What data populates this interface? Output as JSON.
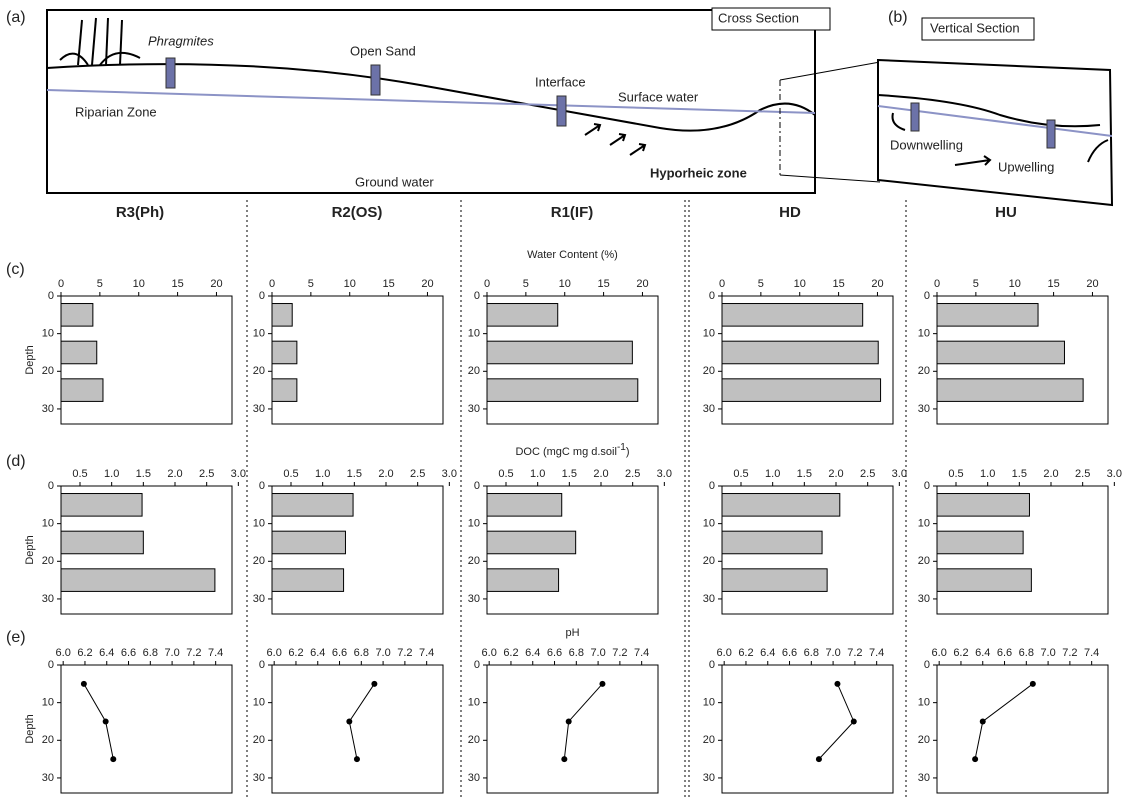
{
  "diagram": {
    "panel_a": "(a)",
    "panel_b": "(b)",
    "cross_section": "Cross Section",
    "vertical_section": "Vertical Section",
    "phragmites": "Phragmites",
    "open_sand": "Open Sand",
    "interface": "Interface",
    "surface_water": "Surface water",
    "riparian_zone": "Riparian Zone",
    "ground_water": "Ground water",
    "hyporheic_zone": "Hyporheic zone",
    "downwelling": "Downwelling",
    "upwelling": "Upwelling"
  },
  "panel_labels": [
    "(c)",
    "(d)",
    "(e)"
  ],
  "sites": [
    "R3(Ph)",
    "R2(OS)",
    "R1(IF)",
    "HD",
    "HU"
  ],
  "chart_data": [
    {
      "type": "hbar",
      "ylabel": "Depth",
      "y": [
        5,
        15,
        25
      ],
      "values": [
        4.1,
        4.6,
        5.4
      ],
      "color": "#c0c0c0",
      "xlim": [
        0,
        22
      ],
      "xticks": [
        0,
        5,
        10,
        15,
        20
      ],
      "ylim": [
        0,
        34
      ],
      "yticks": [
        0,
        10,
        20,
        30
      ]
    },
    {
      "type": "hbar",
      "y": [
        5,
        15,
        25
      ],
      "values": [
        2.6,
        3.2,
        3.2
      ],
      "color": "#c0c0c0",
      "xlim": [
        0,
        22
      ],
      "xticks": [
        0,
        5,
        10,
        15,
        20
      ],
      "ylim": [
        0,
        34
      ],
      "yticks": [
        0,
        10,
        20,
        30
      ]
    },
    {
      "type": "hbar",
      "title": "Water Content (%)",
      "y": [
        5,
        15,
        25
      ],
      "values": [
        9.1,
        18.7,
        19.4
      ],
      "color": "#c0c0c0",
      "xlim": [
        0,
        22
      ],
      "xticks": [
        0,
        5,
        10,
        15,
        20
      ],
      "ylim": [
        0,
        34
      ],
      "yticks": [
        0,
        10,
        20,
        30
      ]
    },
    {
      "type": "hbar",
      "y": [
        5,
        15,
        25
      ],
      "values": [
        18.1,
        20.1,
        20.4
      ],
      "color": "#c0c0c0",
      "xlim": [
        0,
        22
      ],
      "xticks": [
        0,
        5,
        10,
        15,
        20
      ],
      "ylim": [
        0,
        34
      ],
      "yticks": [
        0,
        10,
        20,
        30
      ]
    },
    {
      "type": "hbar",
      "y": [
        5,
        15,
        25
      ],
      "values": [
        13.0,
        16.4,
        18.8
      ],
      "color": "#c0c0c0",
      "xlim": [
        0,
        22
      ],
      "xticks": [
        0,
        5,
        10,
        15,
        20
      ],
      "ylim": [
        0,
        34
      ],
      "yticks": [
        0,
        10,
        20,
        30
      ]
    },
    {
      "type": "hbar",
      "ylabel": "Depth",
      "y": [
        5,
        15,
        25
      ],
      "values": [
        1.48,
        1.5,
        2.63
      ],
      "color": "#c0c0c0",
      "xlim": [
        0.2,
        2.9
      ],
      "xticks": [
        0.5,
        {
          "value": 1,
          "label": "1.0"
        },
        1.5,
        {
          "value": 2,
          "label": "2.0"
        },
        2.5,
        {
          "value": 3,
          "label": "3.0"
        }
      ],
      "ylim": [
        0,
        34
      ],
      "yticks": [
        0,
        10,
        20,
        30
      ]
    },
    {
      "type": "hbar",
      "y": [
        5,
        15,
        25
      ],
      "values": [
        1.48,
        1.36,
        1.33
      ],
      "color": "#c0c0c0",
      "xlim": [
        0.2,
        2.9
      ],
      "xticks": [
        0.5,
        {
          "value": 1,
          "label": "1.0"
        },
        1.5,
        {
          "value": 2,
          "label": "2.0"
        },
        2.5,
        {
          "value": 3,
          "label": "3.0"
        }
      ],
      "ylim": [
        0,
        34
      ],
      "yticks": [
        0,
        10,
        20,
        30
      ]
    },
    {
      "type": "hbar",
      "title": "DOC (mgC mg d.soil",
      "title_sup": "-1",
      "title_end": ")",
      "y": [
        5,
        15,
        25
      ],
      "values": [
        1.38,
        1.6,
        1.33
      ],
      "color": "#c0c0c0",
      "xlim": [
        0.2,
        2.9
      ],
      "xticks": [
        0.5,
        {
          "value": 1,
          "label": "1.0"
        },
        1.5,
        {
          "value": 2,
          "label": "2.0"
        },
        2.5,
        {
          "value": 3,
          "label": "3.0"
        }
      ],
      "ylim": [
        0,
        34
      ],
      "yticks": [
        0,
        10,
        20,
        30
      ]
    },
    {
      "type": "hbar",
      "y": [
        5,
        15,
        25
      ],
      "values": [
        2.06,
        1.78,
        1.86
      ],
      "color": "#c0c0c0",
      "xlim": [
        0.2,
        2.9
      ],
      "xticks": [
        0.5,
        {
          "value": 1,
          "label": "1.0"
        },
        1.5,
        {
          "value": 2,
          "label": "2.0"
        },
        2.5,
        {
          "value": 3,
          "label": "3.0"
        }
      ],
      "ylim": [
        0,
        34
      ],
      "yticks": [
        0,
        10,
        20,
        30
      ]
    },
    {
      "type": "hbar",
      "y": [
        5,
        15,
        25
      ],
      "values": [
        1.66,
        1.56,
        1.69
      ],
      "color": "#c0c0c0",
      "xlim": [
        0.2,
        2.9
      ],
      "xticks": [
        0.5,
        {
          "value": 1,
          "label": "1.0"
        },
        1.5,
        {
          "value": 2,
          "label": "2.0"
        },
        2.5,
        {
          "value": 3,
          "label": "3.0"
        }
      ],
      "ylim": [
        0,
        34
      ],
      "yticks": [
        0,
        10,
        20,
        30
      ]
    },
    {
      "type": "line",
      "ylabel": "Depth",
      "y": [
        5,
        15,
        25
      ],
      "values": [
        6.19,
        6.39,
        6.46
      ],
      "color": "#000000",
      "xlim": [
        5.98,
        7.55
      ],
      "xticks": [
        {
          "value": 6,
          "label": "6.0"
        },
        6.2,
        6.4,
        6.6,
        6.8,
        {
          "value": 7,
          "label": "7.0"
        },
        7.2,
        7.4
      ],
      "ylim": [
        0,
        34
      ],
      "yticks": [
        0,
        10,
        20,
        30
      ]
    },
    {
      "type": "line",
      "y": [
        5,
        15,
        25
      ],
      "values": [
        6.92,
        6.69,
        6.76
      ],
      "color": "#000000",
      "xlim": [
        5.98,
        7.55
      ],
      "xticks": [
        {
          "value": 6,
          "label": "6.0"
        },
        6.2,
        6.4,
        6.6,
        6.8,
        {
          "value": 7,
          "label": "7.0"
        },
        7.2,
        7.4
      ],
      "ylim": [
        0,
        34
      ],
      "yticks": [
        0,
        10,
        20,
        30
      ]
    },
    {
      "type": "line",
      "title": "pH",
      "y": [
        5,
        15,
        25
      ],
      "values": [
        7.04,
        6.73,
        6.69
      ],
      "color": "#000000",
      "xlim": [
        5.98,
        7.55
      ],
      "xticks": [
        {
          "value": 6,
          "label": "6.0"
        },
        6.2,
        6.4,
        6.6,
        6.8,
        {
          "value": 7,
          "label": "7.0"
        },
        7.2,
        7.4
      ],
      "ylim": [
        0,
        34
      ],
      "yticks": [
        0,
        10,
        20,
        30
      ]
    },
    {
      "type": "line",
      "y": [
        5,
        15,
        25
      ],
      "values": [
        7.04,
        7.19,
        6.87
      ],
      "color": "#000000",
      "xlim": [
        5.98,
        7.55
      ],
      "xticks": [
        {
          "value": 6,
          "label": "6.0"
        },
        6.2,
        6.4,
        6.6,
        6.8,
        {
          "value": 7,
          "label": "7.0"
        },
        7.2,
        7.4
      ],
      "ylim": [
        0,
        34
      ],
      "yticks": [
        0,
        10,
        20,
        30
      ]
    },
    {
      "type": "line",
      "y": [
        5,
        15,
        25
      ],
      "values": [
        6.86,
        6.4,
        6.33
      ],
      "color": "#000000",
      "xlim": [
        5.98,
        7.55
      ],
      "xticks": [
        {
          "value": 6,
          "label": "6.0"
        },
        6.2,
        6.4,
        6.6,
        6.8,
        {
          "value": 7,
          "label": "7.0"
        },
        7.2,
        7.4
      ],
      "ylim": [
        0,
        34
      ],
      "yticks": [
        0,
        10,
        20,
        30
      ]
    }
  ]
}
